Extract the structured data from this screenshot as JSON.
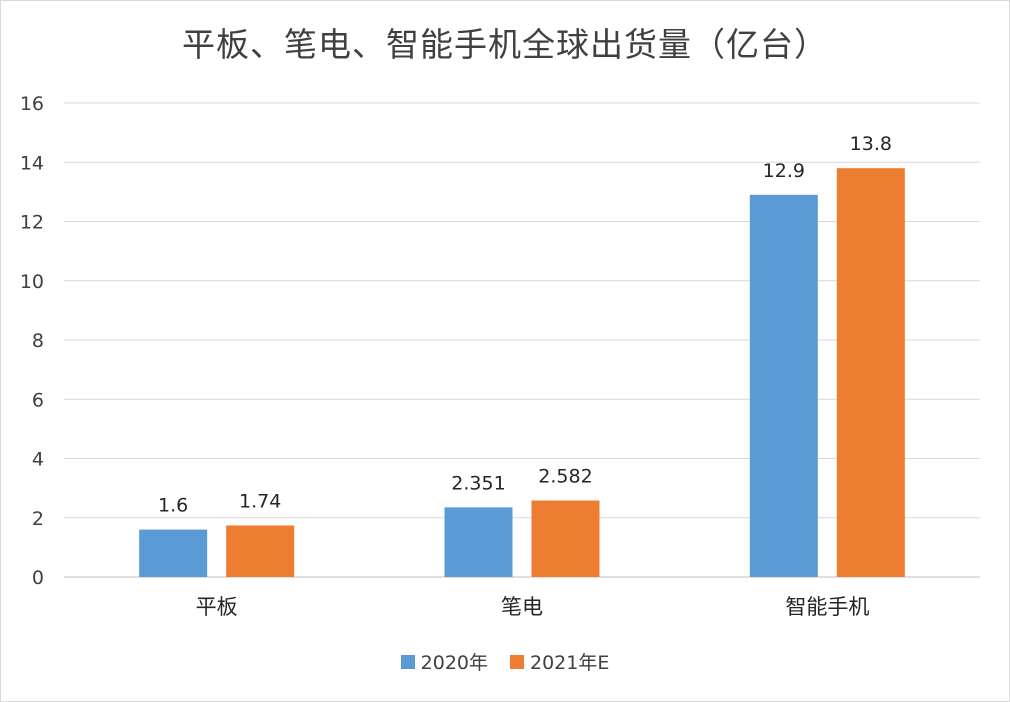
{
  "chart_data": {
    "type": "bar",
    "title": "平板、笔电、智能手机全球出货量（亿台）",
    "categories": [
      "平板",
      "笔电",
      "智能手机"
    ],
    "series": [
      {
        "name": "2020年",
        "color": "#5b9bd5",
        "values": [
          1.6,
          2.351,
          12.9
        ],
        "labels": [
          "1.6",
          "2.351",
          "12.9"
        ]
      },
      {
        "name": "2021年E",
        "color": "#ed7d31",
        "values": [
          1.74,
          2.582,
          13.8
        ],
        "labels": [
          "1.74",
          "2.582",
          "13.8"
        ]
      }
    ],
    "yticks": [
      "0",
      "2",
      "4",
      "6",
      "8",
      "10",
      "12",
      "14",
      "16"
    ],
    "ylim": [
      0,
      16
    ],
    "grid": true,
    "legend": "bottom-center",
    "xlabel": "",
    "ylabel": ""
  }
}
